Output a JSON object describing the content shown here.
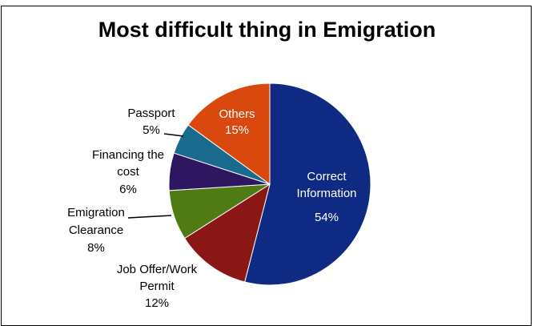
{
  "chart_data": {
    "type": "pie",
    "title": "Most difficult thing in Emigration",
    "slices": [
      {
        "label": "Correct Information",
        "value": 54,
        "value_label": "54%",
        "color": "#0f2a83"
      },
      {
        "label": "Job Offer/Work Permit",
        "value": 12,
        "value_label": "12%",
        "color": "#8b1616"
      },
      {
        "label": "Emigration Clearance",
        "value": 8,
        "value_label": "8%",
        "color": "#4f7a14"
      },
      {
        "label": "Financing the cost",
        "value": 6,
        "value_label": "6%",
        "color": "#2e1760"
      },
      {
        "label": "Passport",
        "value": 5,
        "value_label": "5%",
        "color": "#1a6a8e"
      },
      {
        "label": "Others",
        "value": 15,
        "value_label": "15%",
        "color": "#d9480c"
      }
    ]
  }
}
